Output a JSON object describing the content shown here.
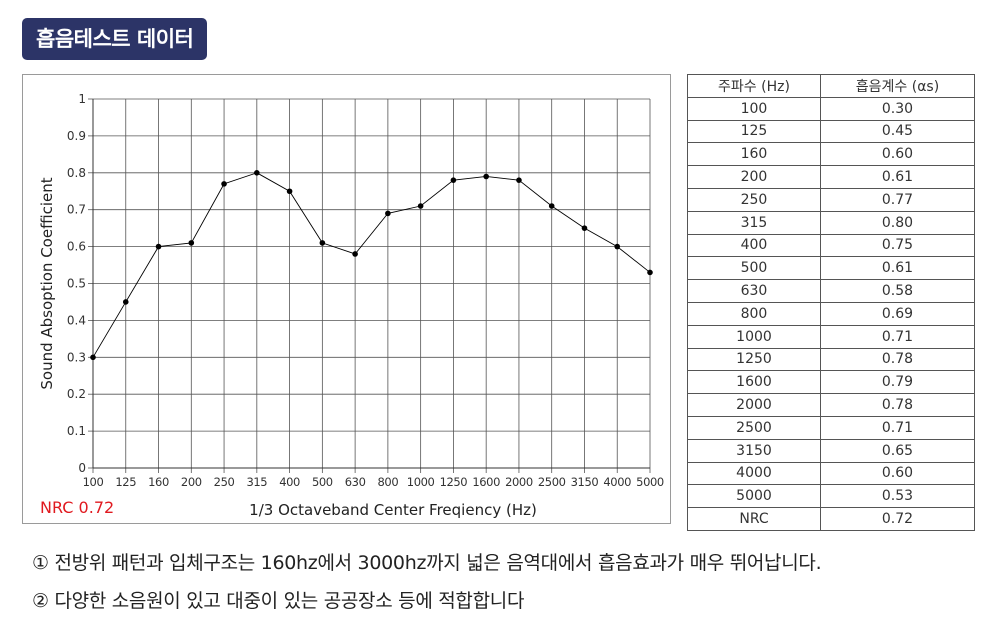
{
  "header": {
    "title": "흡음테스트 데이터"
  },
  "chart_data": {
    "type": "line",
    "ylabel": "Sound Absoption Coefficient",
    "xlabel": "1/3 Octaveband Center Freqiency (Hz)",
    "ylim": [
      0,
      1
    ],
    "y_ticks": [
      "0",
      "0.1",
      "0.2",
      "0.3",
      "0.4",
      "0.5",
      "0.6",
      "0.7",
      "0.8",
      "0.9",
      "1"
    ],
    "categories": [
      "100",
      "125",
      "160",
      "200",
      "250",
      "315",
      "400",
      "500",
      "630",
      "800",
      "1000",
      "1250",
      "1600",
      "2000",
      "2500",
      "3150",
      "4000",
      "5000"
    ],
    "values": [
      0.3,
      0.45,
      0.6,
      0.61,
      0.77,
      0.8,
      0.75,
      0.61,
      0.58,
      0.69,
      0.71,
      0.78,
      0.79,
      0.78,
      0.71,
      0.65,
      0.6,
      0.53
    ],
    "grid": true,
    "annotation": "NRC 0.72"
  },
  "table": {
    "headers": [
      "주파수 (Hz)",
      "흡음계수 (αs)"
    ],
    "rows": [
      [
        "100",
        "0.30"
      ],
      [
        "125",
        "0.45"
      ],
      [
        "160",
        "0.60"
      ],
      [
        "200",
        "0.61"
      ],
      [
        "250",
        "0.77"
      ],
      [
        "315",
        "0.80"
      ],
      [
        "400",
        "0.75"
      ],
      [
        "500",
        "0.61"
      ],
      [
        "630",
        "0.58"
      ],
      [
        "800",
        "0.69"
      ],
      [
        "1000",
        "0.71"
      ],
      [
        "1250",
        "0.78"
      ],
      [
        "1600",
        "0.79"
      ],
      [
        "2000",
        "0.78"
      ],
      [
        "2500",
        "0.71"
      ],
      [
        "3150",
        "0.65"
      ],
      [
        "4000",
        "0.60"
      ],
      [
        "5000",
        "0.53"
      ],
      [
        "NRC",
        "0.72"
      ]
    ]
  },
  "notes": [
    "① 전방위 패턴과 입체구조는 160hz에서 3000hz까지 넓은 음역대에서 흡음효과가 매우 뛰어납니다.",
    "② 다양한 소음원이 있고 대중이 있는  공공장소 등에  적합합니다"
  ],
  "colors": {
    "badge": "#2c3467",
    "nrc": "#e0191f",
    "grid": "#555555",
    "line": "#000000"
  }
}
